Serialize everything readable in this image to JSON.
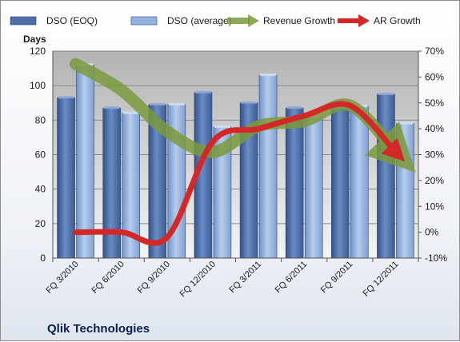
{
  "chart_data": {
    "type": "bar",
    "title": "",
    "caption": "Qlik Technologies",
    "ylabel": "Days",
    "ylim": [
      0,
      120
    ],
    "y_ticks": [
      "0",
      "20",
      "40",
      "60",
      "80",
      "100",
      "120"
    ],
    "y2lim": [
      -10,
      70
    ],
    "y2_ticks": [
      "-10%",
      "0%",
      "10%",
      "20%",
      "30%",
      "40%",
      "50%",
      "60%",
      "70%"
    ],
    "categories": [
      "FQ 3/2010",
      "FQ 6/2010",
      "FQ 9/2010",
      "FQ 12/2010",
      "FQ 3/2011",
      "FQ 6/2011",
      "FQ 9/2011",
      "FQ 12/2011"
    ],
    "legend_position": "top",
    "grid": true,
    "series": [
      {
        "name": "DSO (EOQ)",
        "type": "bar",
        "axis": "left",
        "color": "#4f6fa8",
        "values": [
          93,
          87,
          89,
          96,
          90,
          87,
          87,
          95
        ]
      },
      {
        "name": "DSO (average)",
        "type": "bar",
        "axis": "left",
        "color": "#93b4e0",
        "values": [
          112,
          84,
          89,
          76,
          106,
          82,
          88,
          78
        ]
      },
      {
        "name": "Revenue Growth",
        "type": "line",
        "axis": "right",
        "unit": "%",
        "color": "#7a9a3c",
        "values": [
          65,
          55,
          39,
          31,
          41,
          43,
          49,
          31
        ]
      },
      {
        "name": "AR Growth",
        "type": "line",
        "axis": "right",
        "unit": "%",
        "color": "#d42828",
        "values": [
          0,
          0,
          -2,
          35,
          40,
          45,
          49,
          31
        ]
      }
    ]
  }
}
